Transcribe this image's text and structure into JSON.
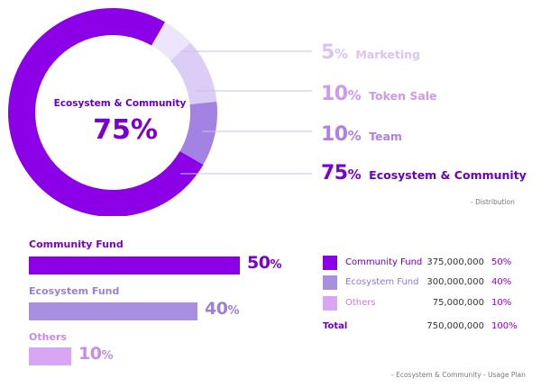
{
  "chart_data": [
    {
      "type": "pie",
      "variant": "donut",
      "title": "",
      "center_label": "Ecosystem & Community",
      "center_value": "75%",
      "categories": [
        "Marketing",
        "Token Sale",
        "Team",
        "Ecosystem & Community"
      ],
      "values": [
        5,
        10,
        10,
        75
      ],
      "colors": [
        "#ede5fb",
        "#dccdf6",
        "#a282e2",
        "#8b00e6"
      ],
      "value_colors": [
        "#dcc3f5",
        "#cc99ee",
        "#b07fe8",
        "#7a00d2"
      ],
      "value_texts": [
        "5",
        "10",
        "10",
        "75"
      ],
      "value_suffix": "%",
      "legend_position": "right",
      "caption": "- Distribution"
    },
    {
      "type": "bar",
      "orientation": "horizontal",
      "categories": [
        "Community Fund",
        "Ecosystem Fund",
        "Others"
      ],
      "values": [
        50,
        40,
        10
      ],
      "value_texts": [
        "50",
        "40",
        "10"
      ],
      "value_suffix": "%",
      "xlim": [
        0,
        50
      ],
      "colors": [
        "#8b00e6",
        "#a88fe0",
        "#d8a6f2"
      ],
      "label_colors": [
        "#7a00d2",
        "#9a80d8",
        "#c88ce8"
      ],
      "value_colors": [
        "#7a00d2",
        "#9a80d8",
        "#c88ce8"
      ],
      "table": {
        "rows": [
          {
            "name": "Community Fund",
            "amount": "375,000,000",
            "percent": "50%",
            "color": "#8b00e6"
          },
          {
            "name": "Ecosystem Fund",
            "amount": "300,000,000",
            "percent": "40%",
            "color": "#a88fe0"
          },
          {
            "name": "Others",
            "amount": "75,000,000",
            "percent": "10%",
            "color": "#d8a6f2"
          }
        ],
        "total": {
          "name": "Total",
          "amount": "750,000,000",
          "percent": "100%"
        }
      },
      "caption": "- Ecosystem & Community - Usage Plan"
    }
  ]
}
